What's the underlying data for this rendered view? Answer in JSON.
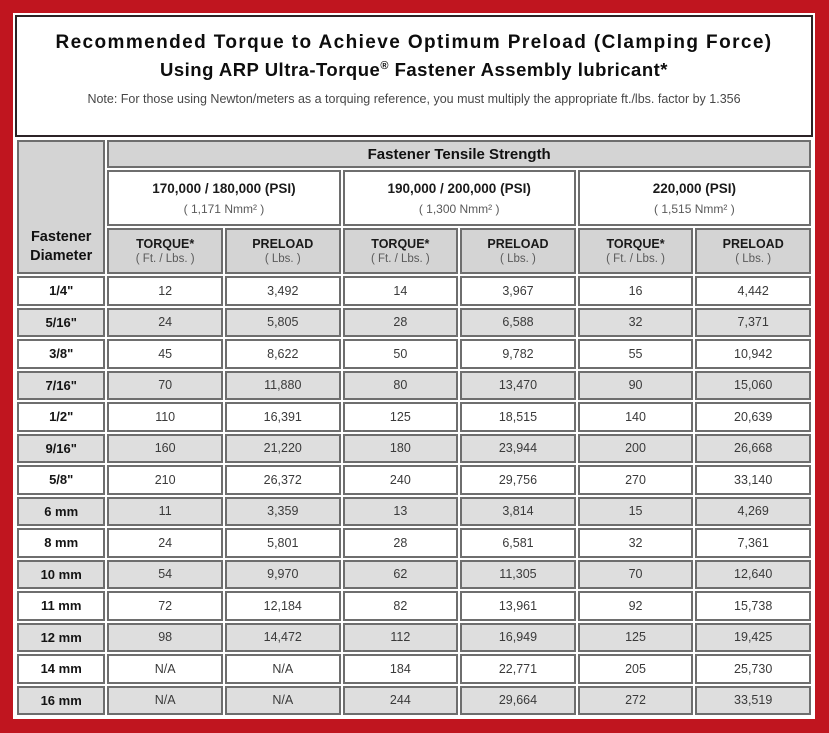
{
  "header": {
    "title_line1": "Recommended Torque to Achieve Optimum Preload (Clamping Force)",
    "title_line2_pre": "Using ARP Ultra-Torque",
    "title_line2_reg": "®",
    "title_line2_post": " Fastener Assembly lubricant*",
    "note": "Note: For those using Newton/meters as a torquing reference, you must multiply the appropriate ft./lbs. factor by 1.356"
  },
  "table": {
    "corner_label": "Fastener Diameter",
    "tensile_header": "Fastener Tensile Strength",
    "groups": [
      {
        "psi": "170,000 / 180,000 (PSI)",
        "nmm": "( 1,171 Nmm² )"
      },
      {
        "psi": "190,000 / 200,000 (PSI)",
        "nmm": "( 1,300 Nmm² )"
      },
      {
        "psi": "220,000 (PSI)",
        "nmm": "( 1,515 Nmm² )"
      }
    ],
    "sub_headers": {
      "torque_label": "TORQUE*",
      "torque_unit": "( Ft. / Lbs. )",
      "preload_label": "PRELOAD",
      "preload_unit": "( Lbs. )"
    },
    "rows": [
      {
        "diameter": "1/4\"",
        "values": [
          "12",
          "3,492",
          "14",
          "3,967",
          "16",
          "4,442"
        ]
      },
      {
        "diameter": "5/16\"",
        "values": [
          "24",
          "5,805",
          "28",
          "6,588",
          "32",
          "7,371"
        ]
      },
      {
        "diameter": "3/8\"",
        "values": [
          "45",
          "8,622",
          "50",
          "9,782",
          "55",
          "10,942"
        ]
      },
      {
        "diameter": "7/16\"",
        "values": [
          "70",
          "11,880",
          "80",
          "13,470",
          "90",
          "15,060"
        ]
      },
      {
        "diameter": "1/2\"",
        "values": [
          "110",
          "16,391",
          "125",
          "18,515",
          "140",
          "20,639"
        ]
      },
      {
        "diameter": "9/16\"",
        "values": [
          "160",
          "21,220",
          "180",
          "23,944",
          "200",
          "26,668"
        ]
      },
      {
        "diameter": "5/8\"",
        "values": [
          "210",
          "26,372",
          "240",
          "29,756",
          "270",
          "33,140"
        ]
      },
      {
        "diameter": "6 mm",
        "values": [
          "11",
          "3,359",
          "13",
          "3,814",
          "15",
          "4,269"
        ]
      },
      {
        "diameter": "8 mm",
        "values": [
          "24",
          "5,801",
          "28",
          "6,581",
          "32",
          "7,361"
        ]
      },
      {
        "diameter": "10 mm",
        "values": [
          "54",
          "9,970",
          "62",
          "11,305",
          "70",
          "12,640"
        ]
      },
      {
        "diameter": "11 mm",
        "values": [
          "72",
          "12,184",
          "82",
          "13,961",
          "92",
          "15,738"
        ]
      },
      {
        "diameter": "12 mm",
        "values": [
          "98",
          "14,472",
          "112",
          "16,949",
          "125",
          "19,425"
        ]
      },
      {
        "diameter": "14 mm",
        "values": [
          "N/A",
          "N/A",
          "184",
          "22,771",
          "205",
          "25,730"
        ]
      },
      {
        "diameter": "16 mm",
        "values": [
          "N/A",
          "N/A",
          "244",
          "29,664",
          "272",
          "33,519"
        ]
      }
    ]
  },
  "colors": {
    "frame_red": "#c0151f",
    "header_gray": "#d4d4d4",
    "row_gray": "#dedede",
    "cell_border": "#6e6e6e"
  },
  "chart_data": {
    "type": "table",
    "title": "Recommended Torque to Achieve Optimum Preload (Clamping Force) Using ARP Ultra-Torque® Fastener Assembly lubricant*",
    "note": "Note: For those using Newton/meters as a torquing reference, you must multiply the appropriate ft./lbs. factor by 1.356",
    "column_groups": [
      "170,000 / 180,000 (PSI) ( 1,171 Nmm² )",
      "190,000 / 200,000 (PSI) ( 1,300 Nmm² )",
      "220,000 (PSI) ( 1,515 Nmm² )"
    ],
    "columns": [
      "Fastener Diameter",
      "Torque Ft./Lbs. @ 170,000/180,000 PSI",
      "Preload Lbs. @ 170,000/180,000 PSI",
      "Torque Ft./Lbs. @ 190,000/200,000 PSI",
      "Preload Lbs. @ 190,000/200,000 PSI",
      "Torque Ft./Lbs. @ 220,000 PSI",
      "Preload Lbs. @ 220,000 PSI"
    ],
    "rows": [
      [
        "1/4\"",
        12,
        3492,
        14,
        3967,
        16,
        4442
      ],
      [
        "5/16\"",
        24,
        5805,
        28,
        6588,
        32,
        7371
      ],
      [
        "3/8\"",
        45,
        8622,
        50,
        9782,
        55,
        10942
      ],
      [
        "7/16\"",
        70,
        11880,
        80,
        13470,
        90,
        15060
      ],
      [
        "1/2\"",
        110,
        16391,
        125,
        18515,
        140,
        20639
      ],
      [
        "9/16\"",
        160,
        21220,
        180,
        23944,
        200,
        26668
      ],
      [
        "5/8\"",
        210,
        26372,
        240,
        29756,
        270,
        33140
      ],
      [
        "6 mm",
        11,
        3359,
        13,
        3814,
        15,
        4269
      ],
      [
        "8 mm",
        24,
        5801,
        28,
        6581,
        32,
        7361
      ],
      [
        "10 mm",
        54,
        9970,
        62,
        11305,
        70,
        12640
      ],
      [
        "11 mm",
        72,
        12184,
        82,
        13961,
        92,
        15738
      ],
      [
        "12 mm",
        98,
        14472,
        112,
        16949,
        125,
        19425
      ],
      [
        "14 mm",
        "N/A",
        "N/A",
        184,
        22771,
        205,
        25730
      ],
      [
        "16 mm",
        "N/A",
        "N/A",
        244,
        29664,
        272,
        33519
      ]
    ]
  }
}
